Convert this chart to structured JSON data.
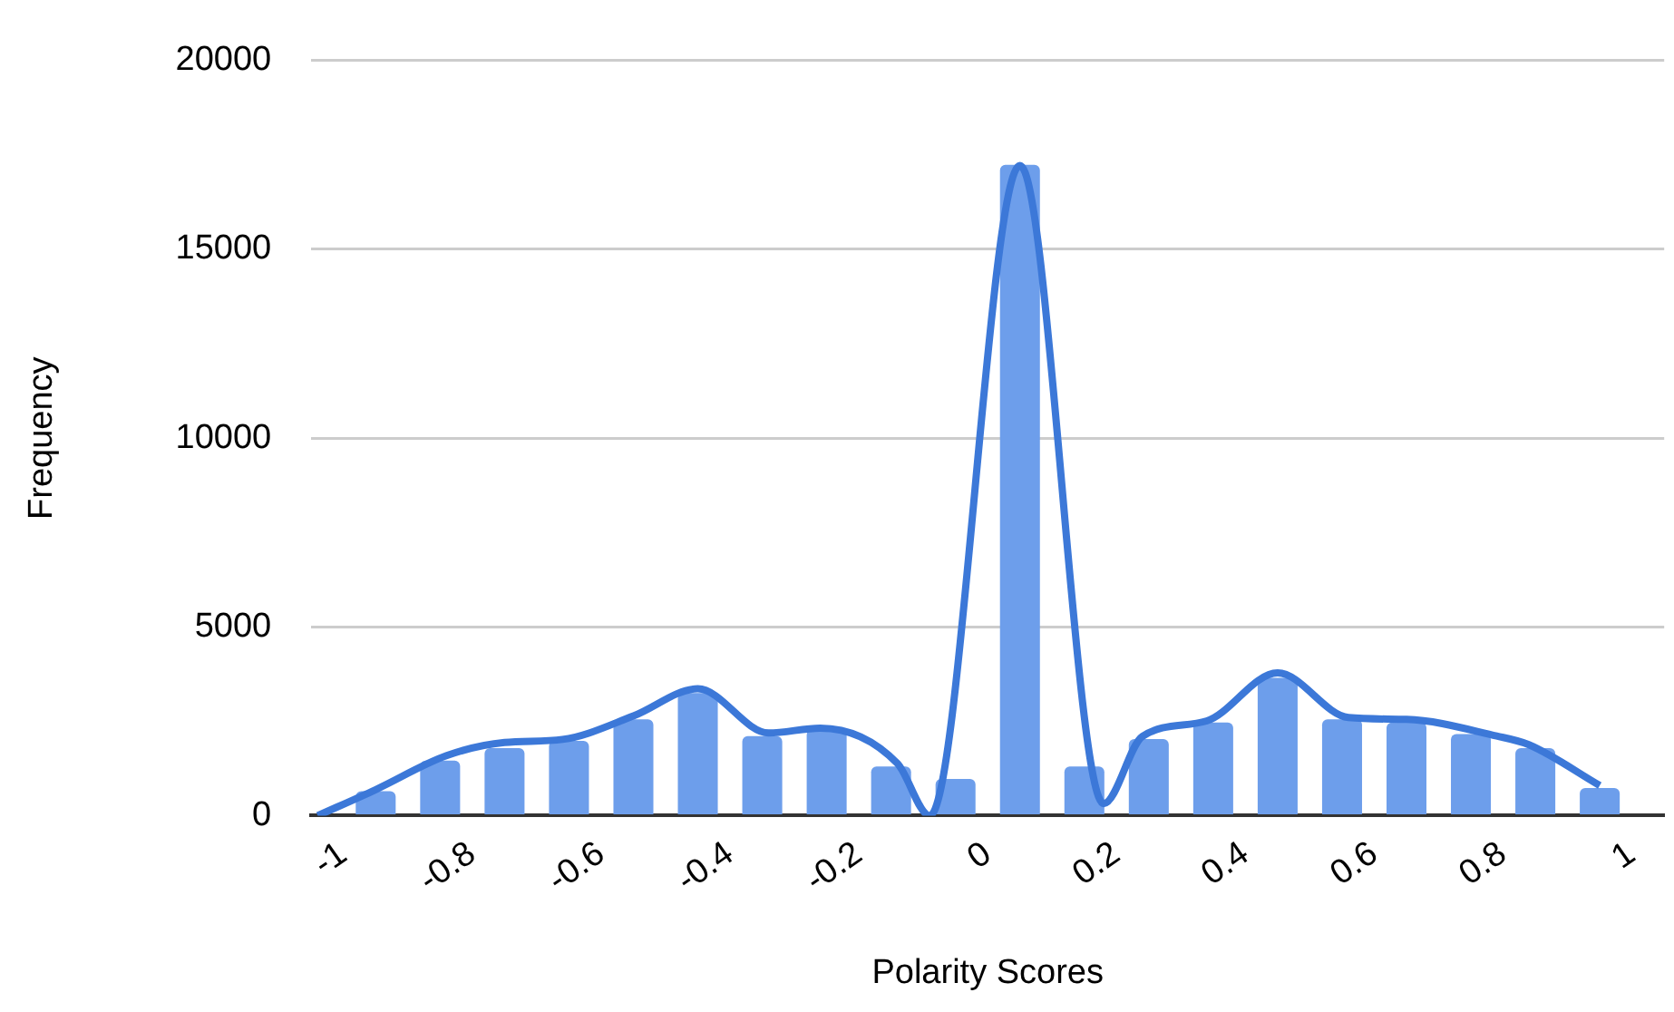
{
  "chart_data": {
    "type": "histogram",
    "xlabel": "Polarity Scores",
    "ylabel": "Frequency",
    "xlim": [
      -1.05,
      1.05
    ],
    "xticks": [
      -1,
      -0.8,
      -0.6,
      -0.4,
      -0.2,
      0,
      0.2,
      0.4,
      0.6,
      0.8,
      1
    ],
    "ylim": [
      0,
      20000
    ],
    "yticks": [
      0,
      5000,
      10000,
      15000,
      20000
    ],
    "grid": "y",
    "legend": false,
    "series": [
      {
        "color": "#6d9eeb",
        "bins": [
          -1,
          -0.9,
          -0.8,
          -0.7,
          -0.6,
          -0.5,
          -0.4,
          -0.3,
          -0.2,
          -0.1,
          0,
          0.1,
          0.2,
          0.3,
          0.4,
          0.5,
          0.6,
          0.7,
          0.8,
          0.9,
          1
        ],
        "values": [
          650,
          1460,
          1790,
          1980,
          2550,
          3250,
          2110,
          2280,
          1300,
          970,
          17240,
          1300,
          2030,
          2470,
          3650,
          2550,
          2470,
          2160,
          1790,
          730
        ]
      },
      {
        "type": "line",
        "color": "#3c78d8",
        "marker": "none",
        "x": [
          -1.04,
          -0.95,
          -0.84,
          -0.75,
          -0.66,
          -0.55,
          -0.45,
          -0.34,
          -0.26,
          -0.14,
          -0.09,
          0.05,
          0.18,
          0.24,
          0.34,
          0.45,
          0.56,
          0.65,
          0.79,
          0.84,
          0.95
        ],
        "values": [
          0,
          690,
          1590,
          1940,
          2020,
          2640,
          3360,
          2190,
          2320,
          1380,
          0,
          17220,
          320,
          2100,
          2510,
          3780,
          2600,
          2550,
          2110,
          1880,
          800
        ]
      }
    ]
  }
}
